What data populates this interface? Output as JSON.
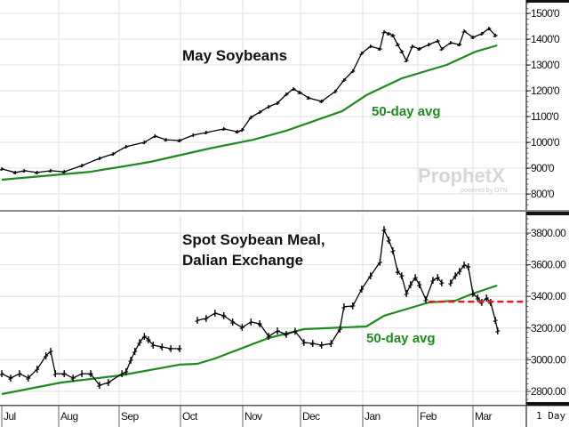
{
  "chart_data": [
    {
      "type": "line",
      "title": "May Soybeans",
      "x_unit": "months since Jul 1",
      "ylabel": "",
      "ylim": [
        760,
        1520
      ],
      "y_ticks": [
        {
          "value": 1500,
          "label": "1500'0"
        },
        {
          "value": 1400,
          "label": "1400'0"
        },
        {
          "value": 1300,
          "label": "1300'0"
        },
        {
          "value": 1200,
          "label": "1200'0"
        },
        {
          "value": 1100,
          "label": "1100'0"
        },
        {
          "value": 1000,
          "label": "1000'0"
        },
        {
          "value": 900,
          "label": "900'0"
        },
        {
          "value": 800,
          "label": "800'0"
        }
      ],
      "grid": true,
      "series": [
        {
          "name": "May Soybeans price",
          "color": "#000000",
          "x": [
            0,
            0.23,
            0.38,
            0.6,
            0.83,
            1.06,
            1.36,
            1.66,
            1.89,
            2.11,
            2.42,
            2.6,
            2.79,
            3.02,
            3.25,
            3.47,
            3.77,
            4.0,
            4.08,
            4.23,
            4.38,
            4.53,
            4.68,
            4.83,
            4.95,
            5.06,
            5.21,
            5.43,
            5.66,
            5.81,
            5.96,
            6.11,
            6.26,
            6.42,
            6.49,
            6.57,
            6.64,
            6.72,
            6.79,
            6.87,
            6.97,
            7.09,
            7.25,
            7.4,
            7.47,
            7.62,
            7.77,
            7.85,
            8.0,
            8.15,
            8.27,
            8.38
          ],
          "values": [
            897,
            883,
            890,
            883,
            890,
            886,
            910,
            938,
            955,
            983,
            1000,
            1024,
            1010,
            1007,
            1028,
            1038,
            1052,
            1041,
            1048,
            1097,
            1117,
            1138,
            1152,
            1186,
            1207,
            1193,
            1172,
            1159,
            1197,
            1241,
            1276,
            1345,
            1372,
            1362,
            1428,
            1421,
            1414,
            1379,
            1352,
            1317,
            1372,
            1362,
            1379,
            1393,
            1362,
            1386,
            1379,
            1431,
            1407,
            1421,
            1441,
            1414
          ]
        },
        {
          "name": "50-day avg",
          "color": "#1f8a1f",
          "x": [
            0,
            1.51,
            2.52,
            3.52,
            4.27,
            4.83,
            5.78,
            6.19,
            6.79,
            7.55,
            8.05,
            8.41
          ],
          "values": [
            855,
            886,
            924,
            976,
            1010,
            1045,
            1121,
            1183,
            1248,
            1300,
            1352,
            1376
          ]
        }
      ],
      "annotations": [
        {
          "text": "50-day avg",
          "color": "#1f8a1f"
        }
      ]
    },
    {
      "type": "line",
      "title": "Spot Soybean Meal,",
      "subtitle": "Dalian Exchange",
      "x_unit": "months since Jul 1",
      "ylim": [
        2780,
        3920
      ],
      "y_ticks": [
        {
          "value": 3800,
          "label": "3800.00"
        },
        {
          "value": 3600,
          "label": "3600.00"
        },
        {
          "value": 3400,
          "label": "3400.00"
        },
        {
          "value": 3200,
          "label": "3200.00"
        },
        {
          "value": 3000,
          "label": "3000.00"
        },
        {
          "value": 2800,
          "label": "2800.00"
        }
      ],
      "grid": true,
      "series": [
        {
          "name": "Spot Soybean Meal price",
          "color": "#000000",
          "segments": [
            {
              "x": [
                0,
                0.15,
                0.3,
                0.45,
                0.6,
                0.75,
                0.83,
                0.91,
                1.06,
                1.21,
                1.36,
                1.51,
                1.66,
                1.81,
                2.04,
                2.11,
                2.19,
                2.26,
                2.34,
                2.42,
                2.49,
                2.57,
                2.72,
                2.87,
                3.02
              ],
              "values": [
                2912,
                2884,
                2912,
                2884,
                2940,
                3025,
                3053,
                2912,
                2912,
                2884,
                2912,
                2912,
                2839,
                2856,
                2912,
                2924,
                2997,
                3053,
                3109,
                3148,
                3126,
                3092,
                3081,
                3070,
                3070
              ]
            },
            {
              "x": [
                3.32,
                3.47,
                3.62,
                3.77,
                3.92,
                4.08,
                4.23,
                4.38,
                4.53,
                4.68,
                4.83,
                4.98,
                5.13,
                5.28,
                5.43,
                5.59,
                5.74,
                5.81,
                5.96,
                6.11,
                6.26,
                6.42,
                6.49,
                6.57,
                6.64,
                6.72,
                6.79,
                6.87,
                6.94,
                7.02,
                7.09,
                7.2,
                7.32,
                7.4,
                7.47
              ],
              "values": [
                3249,
                3261,
                3294,
                3278,
                3238,
                3204,
                3238,
                3227,
                3148,
                3182,
                3160,
                3180,
                3109,
                3103,
                3092,
                3103,
                3193,
                3334,
                3340,
                3446,
                3530,
                3615,
                3822,
                3755,
                3688,
                3558,
                3530,
                3418,
                3474,
                3519,
                3474,
                3379,
                3502,
                3519,
                3485
              ]
            },
            {
              "x": [
                7.62,
                7.7,
                7.77,
                7.85,
                7.92,
                8.0,
                8.08,
                8.15,
                8.23,
                8.3,
                8.38,
                8.42
              ],
              "values": [
                3485,
                3530,
                3558,
                3598,
                3587,
                3418,
                3390,
                3362,
                3390,
                3362,
                3249,
                3182
              ]
            }
          ]
        },
        {
          "name": "50-day avg",
          "color": "#1f8a1f",
          "x": [
            0,
            1.01,
            2.01,
            3.02,
            3.32,
            3.62,
            4.53,
            5.13,
            6.19,
            6.49,
            7.25,
            7.7,
            8.0,
            8.41
          ],
          "values": [
            2783,
            2856,
            2901,
            2969,
            2974,
            3008,
            3137,
            3193,
            3210,
            3278,
            3362,
            3373,
            3418,
            3469
          ]
        }
      ],
      "reference_line": {
        "value": 3367,
        "from_x": 7.25,
        "color": "#e02020",
        "style": "dashed"
      },
      "annotations": [
        {
          "text": "50-day avg",
          "color": "#1f8a1f"
        }
      ]
    }
  ],
  "x_axis": {
    "months": [
      "Jul",
      "Aug",
      "Sep",
      "Oct",
      "Nov",
      "Dec",
      "Jan",
      "Feb",
      "Mar"
    ],
    "period": "1 Day"
  },
  "watermark": {
    "brand": "ProphetX",
    "tagline": "powered by DTN"
  }
}
